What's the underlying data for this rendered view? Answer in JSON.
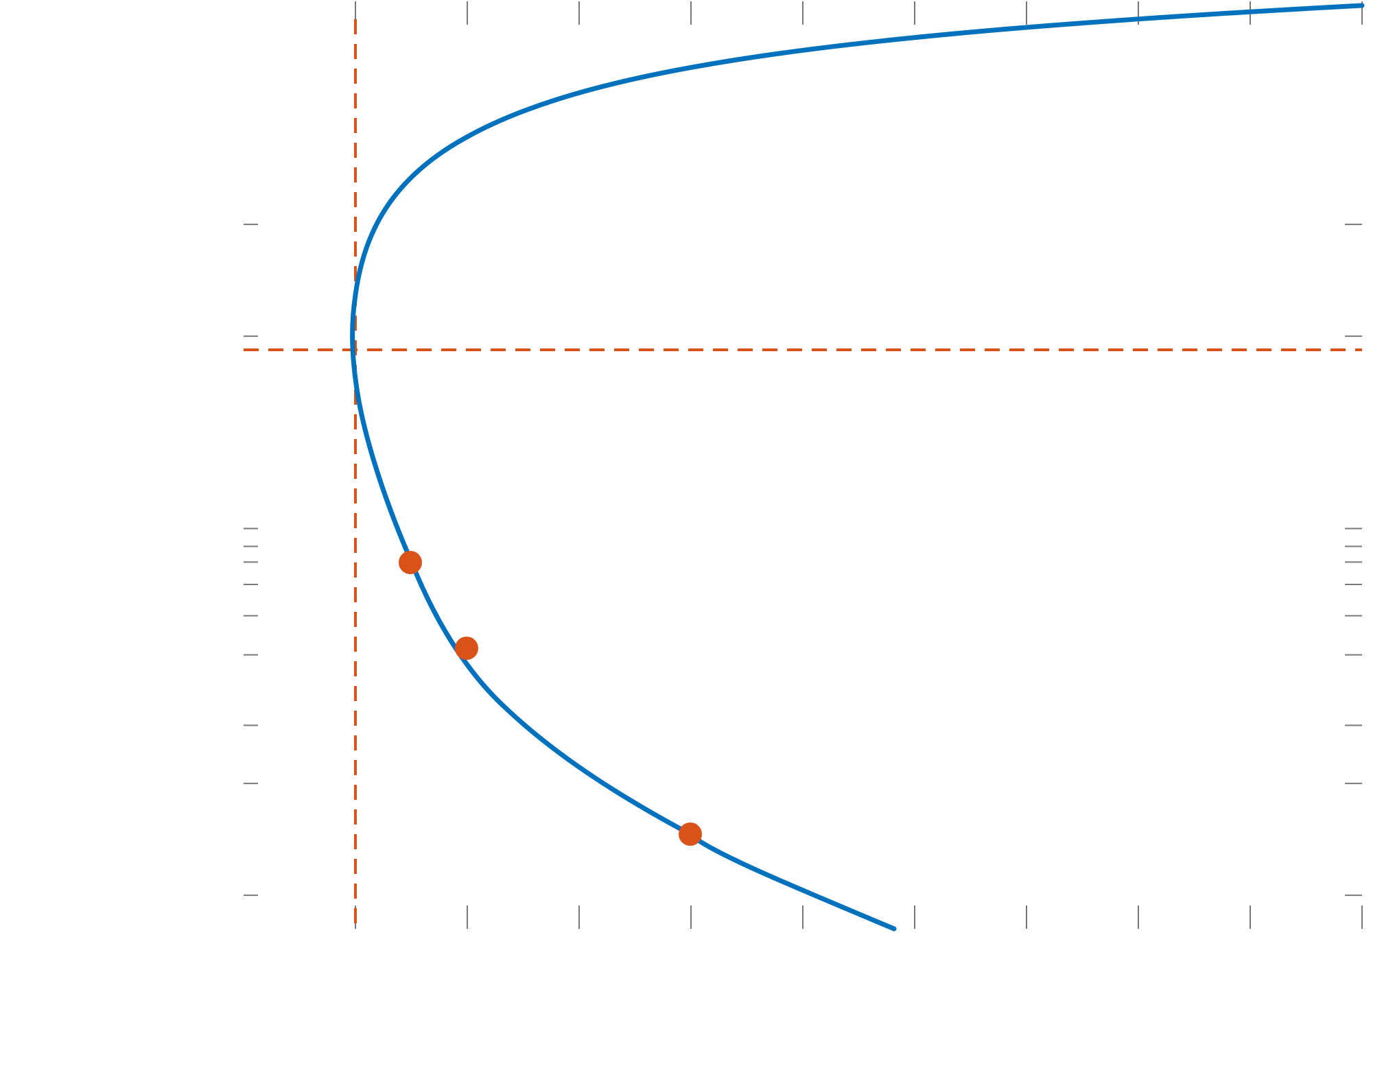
{
  "chart_data": {
    "type": "line",
    "title": "",
    "xlabel": "",
    "ylabel": "",
    "xlim": [
      0,
      9
    ],
    "ylim": [
      0,
      9
    ],
    "x_ticks": [
      0,
      1,
      2,
      3,
      4,
      5,
      6,
      7,
      8,
      9
    ],
    "y_ticks": [
      0.3,
      1.3,
      1.82,
      2.45,
      2.8,
      3.08,
      3.28,
      3.42,
      3.58,
      5.3,
      6.3
    ],
    "grid": false,
    "legend": "none",
    "series": [
      {
        "kind": "curve",
        "color": "#0072BD",
        "x": [
          4.8,
          4.2,
          3.6,
          3.0,
          2.4,
          1.8,
          1.2,
          0.8,
          0.5,
          0.3,
          0.15,
          0.05,
          0.01,
          0.0,
          0.01,
          0.05,
          0.15,
          0.3,
          0.6,
          1.0,
          1.5,
          2.0,
          3.0,
          4.0,
          5.0,
          6.0,
          7.0,
          8.0,
          9.0
        ],
        "y": [
          0.0,
          0.3,
          0.55,
          0.82,
          1.13,
          1.5,
          1.95,
          2.4,
          2.83,
          3.18,
          3.55,
          3.9,
          4.2,
          4.6,
          5.1,
          5.65,
          6.0,
          6.35,
          6.68,
          6.92,
          7.12,
          7.27,
          7.48,
          7.64,
          7.78,
          7.91,
          8.03,
          8.14,
          8.25
        ],
        "width": 7
      },
      {
        "kind": "points",
        "color": "#D95319",
        "x": [
          0.5,
          1.0,
          3.0
        ],
        "y": [
          3.47,
          2.63,
          0.83
        ],
        "radius": 17
      },
      {
        "kind": "vline",
        "color": "#D95319",
        "dashed": true,
        "x": 0.0
      },
      {
        "kind": "hline",
        "color": "#D95319",
        "dashed": true,
        "y": 5.55
      }
    ]
  }
}
